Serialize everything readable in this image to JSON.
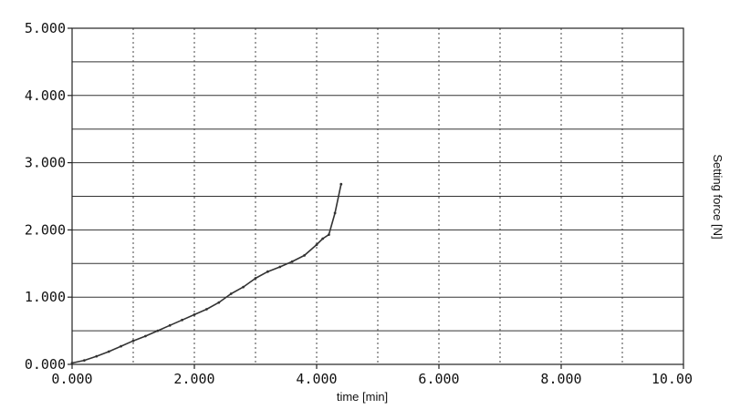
{
  "chart_data": {
    "type": "line",
    "title": "",
    "xlabel": "time [min]",
    "ylabel": "Setting force [N]",
    "xlim": [
      0,
      10
    ],
    "ylim": [
      0,
      5
    ],
    "x_ticks": [
      0,
      2,
      4,
      6,
      8,
      10
    ],
    "x_tick_labels": [
      "0.000",
      "2.000",
      "4.000",
      "6.000",
      "8.000",
      "10.00"
    ],
    "y_ticks": [
      0,
      1,
      2,
      3,
      4,
      5
    ],
    "y_tick_labels": [
      "0.000",
      "1.000",
      "2.000",
      "3.000",
      "4.000",
      "5.000"
    ],
    "grid": true,
    "series": [
      {
        "x": [
          0,
          0.2,
          0.4,
          0.6,
          0.8,
          1.0,
          1.2,
          1.4,
          1.6,
          1.8,
          2.0,
          2.2,
          2.4,
          2.6,
          2.8,
          3.0,
          3.2,
          3.4,
          3.6,
          3.8,
          4.0,
          4.1,
          4.2,
          4.3,
          4.4
        ],
        "y": [
          0.02,
          0.06,
          0.12,
          0.19,
          0.27,
          0.35,
          0.42,
          0.5,
          0.58,
          0.66,
          0.74,
          0.82,
          0.92,
          1.05,
          1.15,
          1.28,
          1.38,
          1.45,
          1.53,
          1.62,
          1.78,
          1.87,
          1.93,
          2.25,
          2.68
        ],
        "color": "#333333"
      }
    ]
  }
}
